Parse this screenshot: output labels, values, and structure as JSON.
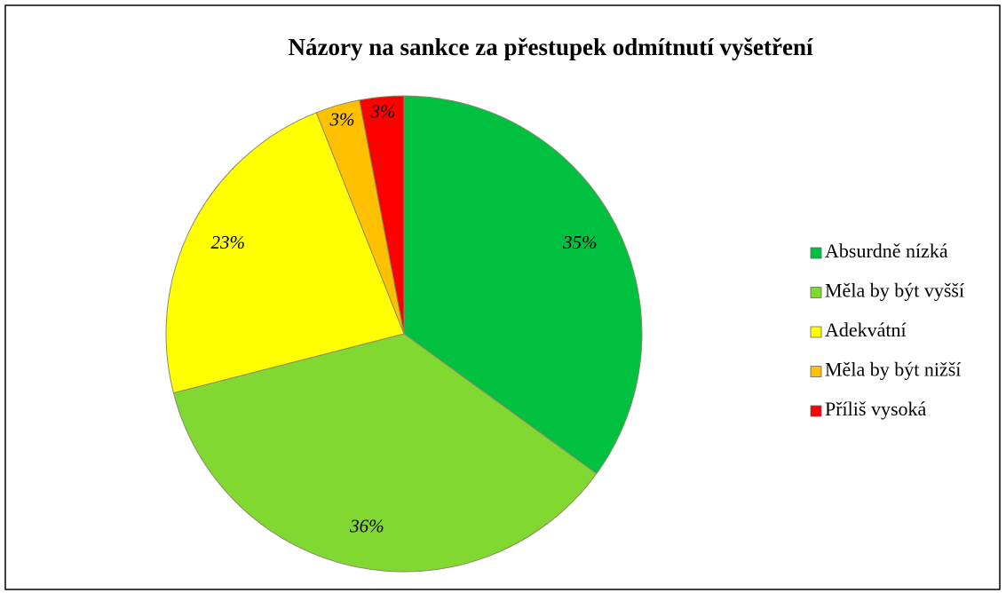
{
  "chart_data": {
    "type": "pie",
    "title": "Názory na sankce za přestupek odmítnutí vyšetření",
    "categories": [
      "Absurdně nízká",
      "Měla by být vyšší",
      "Adekvátní",
      "Měla by být nižší",
      "Příliš vysoká"
    ],
    "values": [
      35,
      36,
      23,
      3,
      3
    ],
    "value_labels": [
      "35%",
      "36%",
      "23%",
      "3%",
      "3%"
    ],
    "colors": [
      "#00c040",
      "#80d830",
      "#ffff00",
      "#ffc000",
      "#ff0000"
    ],
    "legend": "right"
  }
}
